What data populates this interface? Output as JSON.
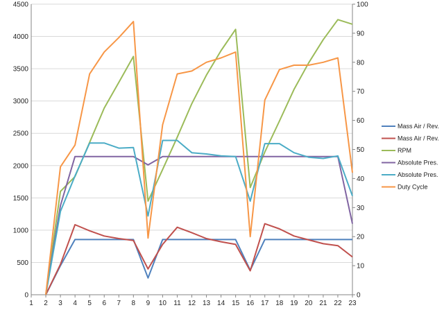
{
  "chart_data": {
    "type": "line",
    "title": "",
    "xlabel": "",
    "ylabel": "",
    "y2label": "",
    "categories": [
      "1",
      "2",
      "3",
      "4",
      "5",
      "6",
      "7",
      "8",
      "9",
      "10",
      "11",
      "12",
      "13",
      "14",
      "15",
      "16",
      "17",
      "18",
      "19",
      "20",
      "21",
      "22",
      "23"
    ],
    "ylim": [
      0,
      4500
    ],
    "y2lim": [
      0,
      100
    ],
    "yticks": [
      "0",
      "500",
      "1000",
      "1500",
      "2000",
      "2500",
      "3000",
      "3500",
      "4000",
      "4500"
    ],
    "y2ticks": [
      "0",
      "10",
      "20",
      "30",
      "40",
      "50",
      "60",
      "70",
      "80",
      "90",
      "100"
    ],
    "grid": true,
    "legend_position": "right",
    "series": [
      {
        "name": "Mass Air / Rev.",
        "color": "#4f81bd",
        "axis": "left",
        "values": [
          null,
          0,
          450,
          855,
          855,
          855,
          855,
          855,
          260,
          855,
          855,
          855,
          855,
          855,
          855,
          380,
          855,
          855,
          855,
          855,
          855,
          855,
          855
        ]
      },
      {
        "name": "Mass Air / Rev.",
        "color": "#c0504d",
        "axis": "left",
        "values": [
          null,
          0,
          470,
          1085,
          990,
          910,
          870,
          840,
          400,
          780,
          1045,
          960,
          870,
          820,
          780,
          370,
          1100,
          1020,
          910,
          850,
          790,
          760,
          585
        ]
      },
      {
        "name": "RPM",
        "color": "#9bbb59",
        "axis": "left",
        "values": [
          null,
          0,
          1600,
          1830,
          2360,
          2890,
          3290,
          3690,
          1450,
          1940,
          2440,
          2960,
          3400,
          3780,
          4110,
          1660,
          2210,
          2690,
          3180,
          3590,
          3950,
          4260,
          4190
        ]
      },
      {
        "name": "Absolute Pres.",
        "color": "#8064a2",
        "axis": "left",
        "values": [
          null,
          0,
          1380,
          2140,
          2140,
          2140,
          2140,
          2140,
          2010,
          2140,
          2140,
          2140,
          2140,
          2140,
          2140,
          2140,
          2140,
          2140,
          2140,
          2140,
          2140,
          2140,
          1100
        ]
      },
      {
        "name": "Absolute Pres.",
        "color": "#4bacc6",
        "axis": "left",
        "values": [
          null,
          0,
          1290,
          1840,
          2350,
          2350,
          2270,
          2280,
          1220,
          2390,
          2390,
          2200,
          2180,
          2150,
          2140,
          1450,
          2340,
          2340,
          2200,
          2130,
          2110,
          2150,
          1530
        ]
      },
      {
        "name": "Duty Cycle",
        "color": "#f79646",
        "axis": "right",
        "values": [
          null,
          0,
          44,
          51.5,
          76,
          83.5,
          88.5,
          94,
          19.5,
          58.5,
          76,
          77,
          80,
          81.5,
          83.5,
          20,
          67,
          77.5,
          79,
          79,
          80,
          81.5,
          42
        ]
      }
    ]
  }
}
